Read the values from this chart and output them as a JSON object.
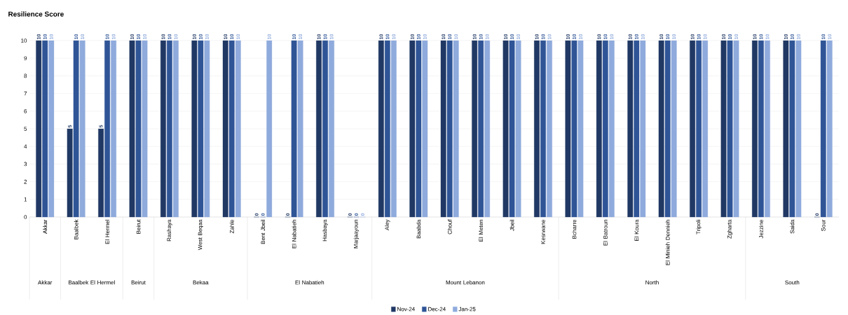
{
  "chart_data": {
    "type": "bar",
    "title": "Resilience Score",
    "categories": [
      "Akkar",
      "Baalbek",
      "El Hermel",
      "Beirut",
      "Rashaya",
      "West Beqaa",
      "Zahle",
      "Bent Jbeil",
      "El Nabatieh",
      "Hasbaya",
      "Marjaayoun",
      "Aley",
      "Baabda",
      "Chouf",
      "El Meten",
      "Jbeil",
      "Kesrwane",
      "Bcharre",
      "El Batroun",
      "El Koura",
      "El Minieh Dennieh",
      "Tripoli",
      "Zgharta",
      "Jezzine",
      "Saida",
      "Sour"
    ],
    "series": [
      {
        "name": "Nov-24",
        "color": "#203864",
        "values": [
          10,
          5,
          5,
          10,
          10,
          10,
          10,
          0,
          0,
          10,
          0,
          10,
          10,
          10,
          10,
          10,
          10,
          10,
          10,
          10,
          10,
          10,
          10,
          10,
          10,
          0
        ]
      },
      {
        "name": "Dec-24",
        "color": "#2f5597",
        "values": [
          10,
          10,
          10,
          10,
          10,
          10,
          10,
          0,
          10,
          10,
          0,
          10,
          10,
          10,
          10,
          10,
          10,
          10,
          10,
          10,
          10,
          10,
          10,
          10,
          10,
          10
        ]
      },
      {
        "name": "Jan-25",
        "color": "#8faadc",
        "values": [
          10,
          10,
          10,
          10,
          10,
          10,
          10,
          10,
          10,
          10,
          0,
          10,
          10,
          10,
          10,
          10,
          10,
          10,
          10,
          10,
          10,
          10,
          10,
          10,
          10,
          10
        ]
      }
    ],
    "ylim": [
      0,
      10
    ],
    "yticks": [
      0,
      1,
      2,
      3,
      4,
      5,
      6,
      7,
      8,
      9,
      10
    ],
    "grid": "y",
    "legend": "bottom",
    "data_labels": true,
    "annotations": [
      "Akkar",
      "Baalbek El Hermel",
      "Beirut",
      "Bekaa",
      "El Nabatieh",
      "Mount Lebanon",
      "North",
      "South"
    ]
  }
}
